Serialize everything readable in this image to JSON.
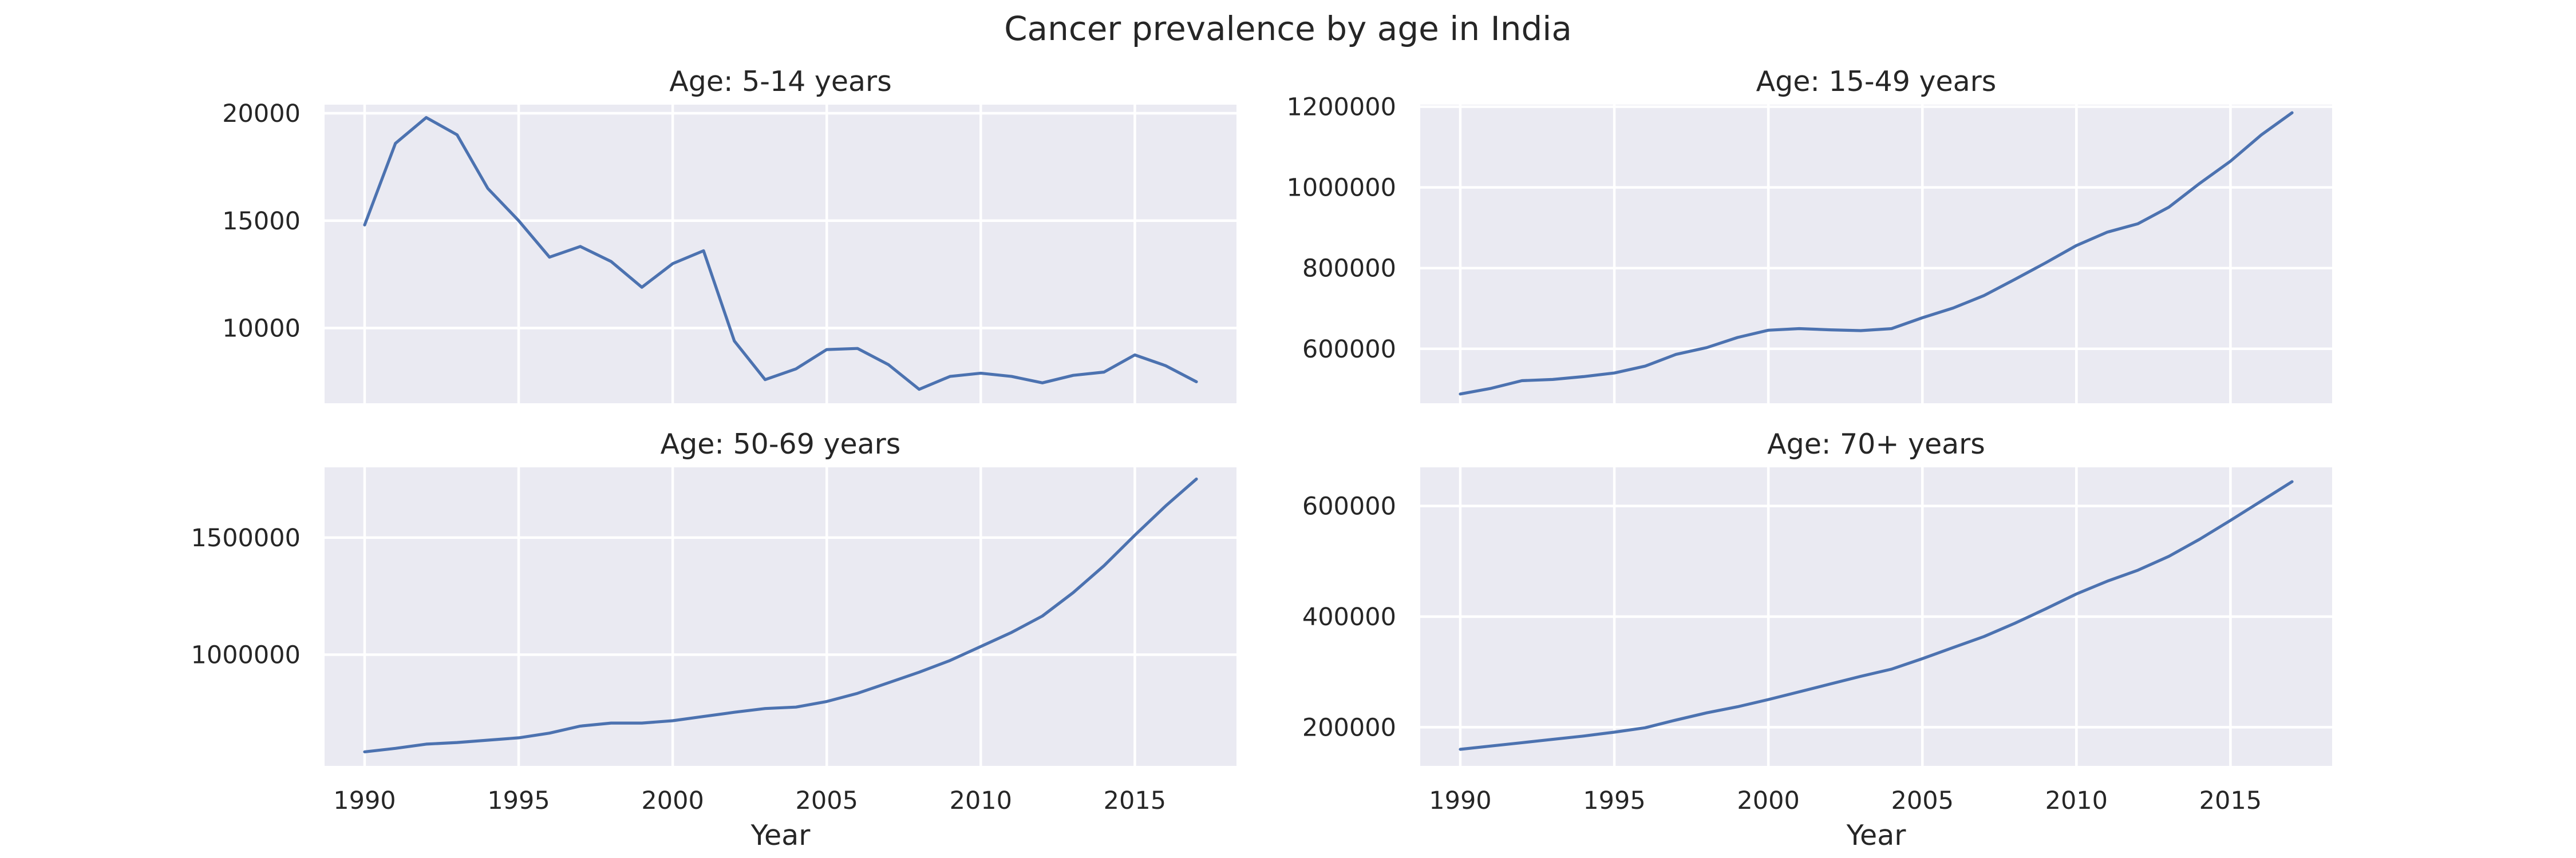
{
  "figure": {
    "title": "Cancer prevalence by age in India"
  },
  "chart_data": [
    {
      "type": "line",
      "title": "Age: 5-14 years",
      "xlabel": "",
      "ylabel": "",
      "x": [
        1990,
        1991,
        1992,
        1993,
        1994,
        1995,
        1996,
        1997,
        1998,
        1999,
        2000,
        2001,
        2002,
        2003,
        2004,
        2005,
        2006,
        2007,
        2008,
        2009,
        2010,
        2011,
        2012,
        2013,
        2014,
        2015,
        2016,
        2017
      ],
      "y": [
        14800,
        18600,
        19800,
        19000,
        16500,
        15000,
        13300,
        13800,
        13100,
        11900,
        13000,
        13600,
        9400,
        7600,
        8100,
        9000,
        9050,
        8300,
        7150,
        7750,
        7900,
        7750,
        7450,
        7800,
        7950,
        8750,
        8250,
        7500
      ],
      "xlim": [
        1988.7,
        2018.3
      ],
      "ylim": [
        6500,
        20400
      ],
      "xticks": [
        1990,
        1995,
        2000,
        2005,
        2010,
        2015
      ],
      "yticks": [
        10000,
        15000,
        20000
      ],
      "ytick_labels": [
        "10000",
        "15000",
        "20000"
      ],
      "xtick_labels_visible": false,
      "grid": true,
      "color": "#4c72b0"
    },
    {
      "type": "line",
      "title": "Age: 15-49 years",
      "xlabel": "",
      "ylabel": "",
      "x": [
        1990,
        1991,
        1992,
        1993,
        1994,
        1995,
        1996,
        1997,
        1998,
        1999,
        2000,
        2001,
        2002,
        2003,
        2004,
        2005,
        2006,
        2007,
        2008,
        2009,
        2010,
        2011,
        2012,
        2013,
        2014,
        2015,
        2016,
        2017
      ],
      "y": [
        488000,
        502000,
        521000,
        524000,
        531000,
        540000,
        557000,
        586000,
        603000,
        628000,
        646000,
        650000,
        647000,
        645000,
        650000,
        677000,
        701000,
        732000,
        772000,
        813000,
        856000,
        889000,
        910000,
        951000,
        1010000,
        1065000,
        1130000,
        1185000
      ],
      "xlim": [
        1988.7,
        2018.3
      ],
      "ylim": [
        465000,
        1205000
      ],
      "xticks": [
        1990,
        1995,
        2000,
        2005,
        2010,
        2015
      ],
      "yticks": [
        600000,
        800000,
        1000000,
        1200000
      ],
      "ytick_labels": [
        "600000",
        "800000",
        "1000000",
        "1200000"
      ],
      "xtick_labels_visible": false,
      "grid": true,
      "color": "#4c72b0"
    },
    {
      "type": "line",
      "title": "Age: 50-69 years",
      "xlabel": "Year",
      "ylabel": "",
      "x": [
        1990,
        1991,
        1992,
        1993,
        1994,
        1995,
        1996,
        1997,
        1998,
        1999,
        2000,
        2001,
        2002,
        2003,
        2004,
        2005,
        2006,
        2007,
        2008,
        2009,
        2010,
        2011,
        2012,
        2013,
        2014,
        2015,
        2016,
        2017
      ],
      "y": [
        585000,
        600000,
        618000,
        625000,
        635000,
        645000,
        665000,
        695000,
        708000,
        708000,
        718000,
        736000,
        754000,
        770000,
        776000,
        800000,
        835000,
        880000,
        925000,
        975000,
        1035000,
        1095000,
        1165000,
        1265000,
        1380000,
        1510000,
        1635000,
        1750000
      ],
      "xlim": [
        1988.7,
        2018.3
      ],
      "ylim": [
        525000,
        1800000
      ],
      "xticks": [
        1990,
        1995,
        2000,
        2005,
        2010,
        2015
      ],
      "xtick_labels": [
        "1990",
        "1995",
        "2000",
        "2005",
        "2010",
        "2015"
      ],
      "yticks": [
        1000000,
        1500000
      ],
      "ytick_labels": [
        "1000000",
        "1500000"
      ],
      "grid": true,
      "color": "#4c72b0"
    },
    {
      "type": "line",
      "title": "Age: 70+ years",
      "xlabel": "Year",
      "ylabel": "",
      "x": [
        1990,
        1991,
        1992,
        1993,
        1994,
        1995,
        1996,
        1997,
        1998,
        1999,
        2000,
        2001,
        2002,
        2003,
        2004,
        2005,
        2006,
        2007,
        2008,
        2009,
        2010,
        2011,
        2012,
        2013,
        2014,
        2015,
        2016,
        2017
      ],
      "y": [
        160000,
        166000,
        172000,
        178000,
        184000,
        191000,
        199000,
        213000,
        226000,
        237000,
        250000,
        264000,
        278000,
        292000,
        305000,
        324000,
        344000,
        364000,
        388000,
        414000,
        441000,
        464000,
        484000,
        509000,
        540000,
        574000,
        609000,
        644000
      ],
      "xlim": [
        1988.7,
        2018.3
      ],
      "ylim": [
        130000,
        670000
      ],
      "xticks": [
        1990,
        1995,
        2000,
        2005,
        2010,
        2015
      ],
      "xtick_labels": [
        "1990",
        "1995",
        "2000",
        "2005",
        "2010",
        "2015"
      ],
      "yticks": [
        200000,
        400000,
        600000
      ],
      "ytick_labels": [
        "200000",
        "400000",
        "600000"
      ],
      "grid": true,
      "color": "#4c72b0"
    }
  ]
}
